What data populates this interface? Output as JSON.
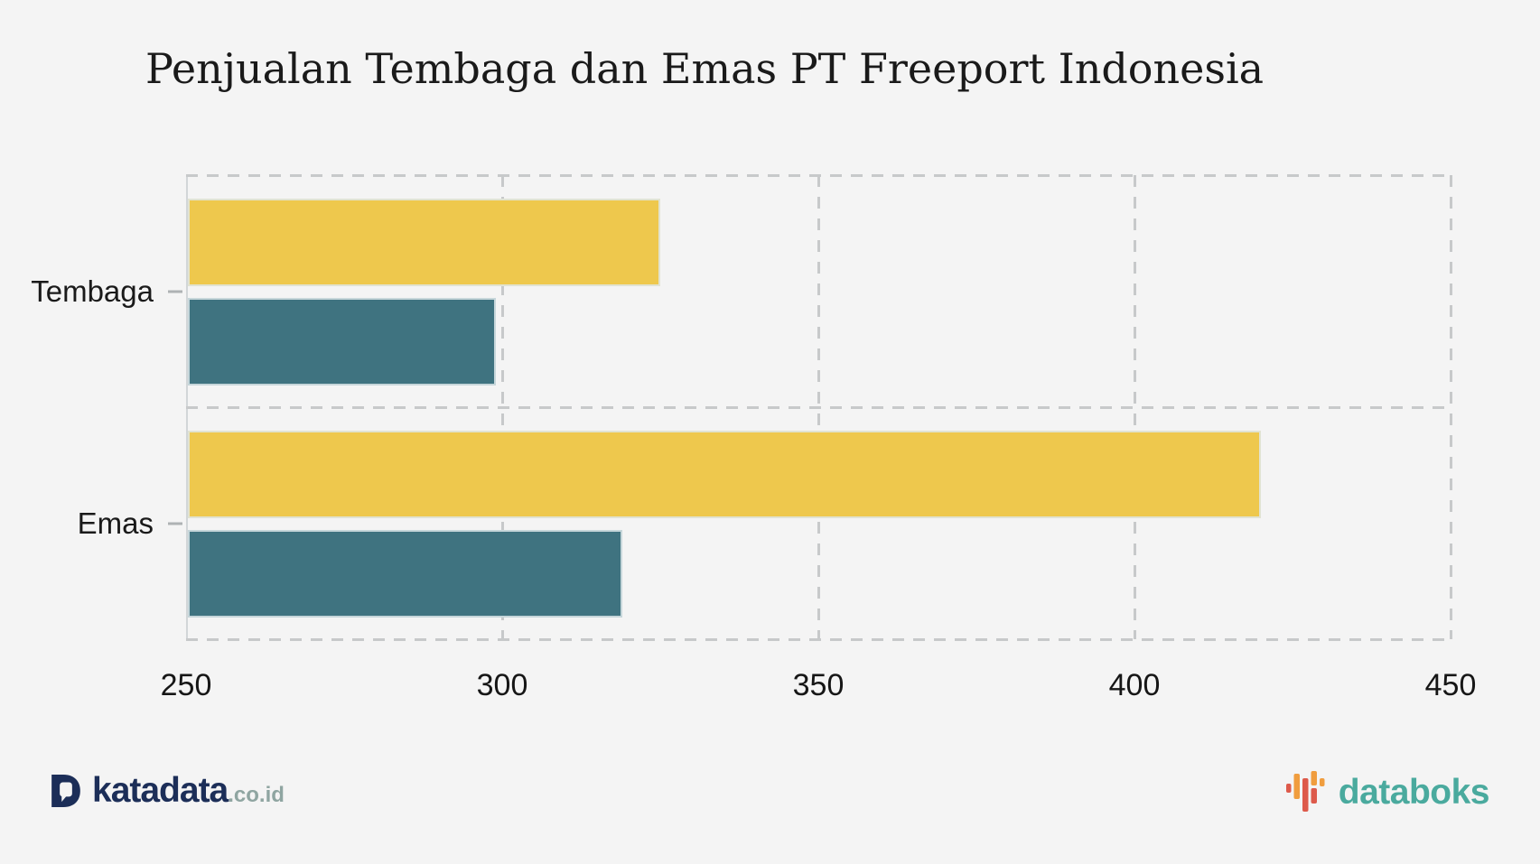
{
  "title": "Penjualan Tembaga dan Emas PT Freeport Indonesia",
  "chart_data": {
    "type": "bar",
    "orientation": "horizontal",
    "title": "Penjualan Tembaga dan Emas PT Freeport Indonesia",
    "categories": [
      "Tembaga",
      "Emas"
    ],
    "series": [
      {
        "name": "series-yellow",
        "color": "#eec84d",
        "values": [
          325,
          420
        ]
      },
      {
        "name": "series-teal",
        "color": "#3f7380",
        "values": [
          299,
          319
        ]
      }
    ],
    "xlim": [
      250,
      450
    ],
    "xticks": [
      250,
      300,
      350,
      400,
      450
    ],
    "grid": "dashed",
    "legend": "none",
    "xlabel": "",
    "ylabel": ""
  },
  "footer": {
    "katadata": {
      "text": "katadata",
      "suffix": ".co.id",
      "brand_color": "#1c2e58",
      "suffix_color": "#8fa5a1",
      "icon": "speech-bubble-d"
    },
    "databoks": {
      "text": "databoks",
      "brand_color": "#4aaa9e",
      "icon": "pulse-bars",
      "icon_orange": "#f09d3e",
      "icon_red": "#dd5a4b"
    }
  },
  "colors": {
    "background": "#f4f4f4",
    "grid": "#c7c9ca",
    "axis": "#d2d6d8",
    "text": "#1a1a1a",
    "bar_border": "#dee7ea"
  }
}
